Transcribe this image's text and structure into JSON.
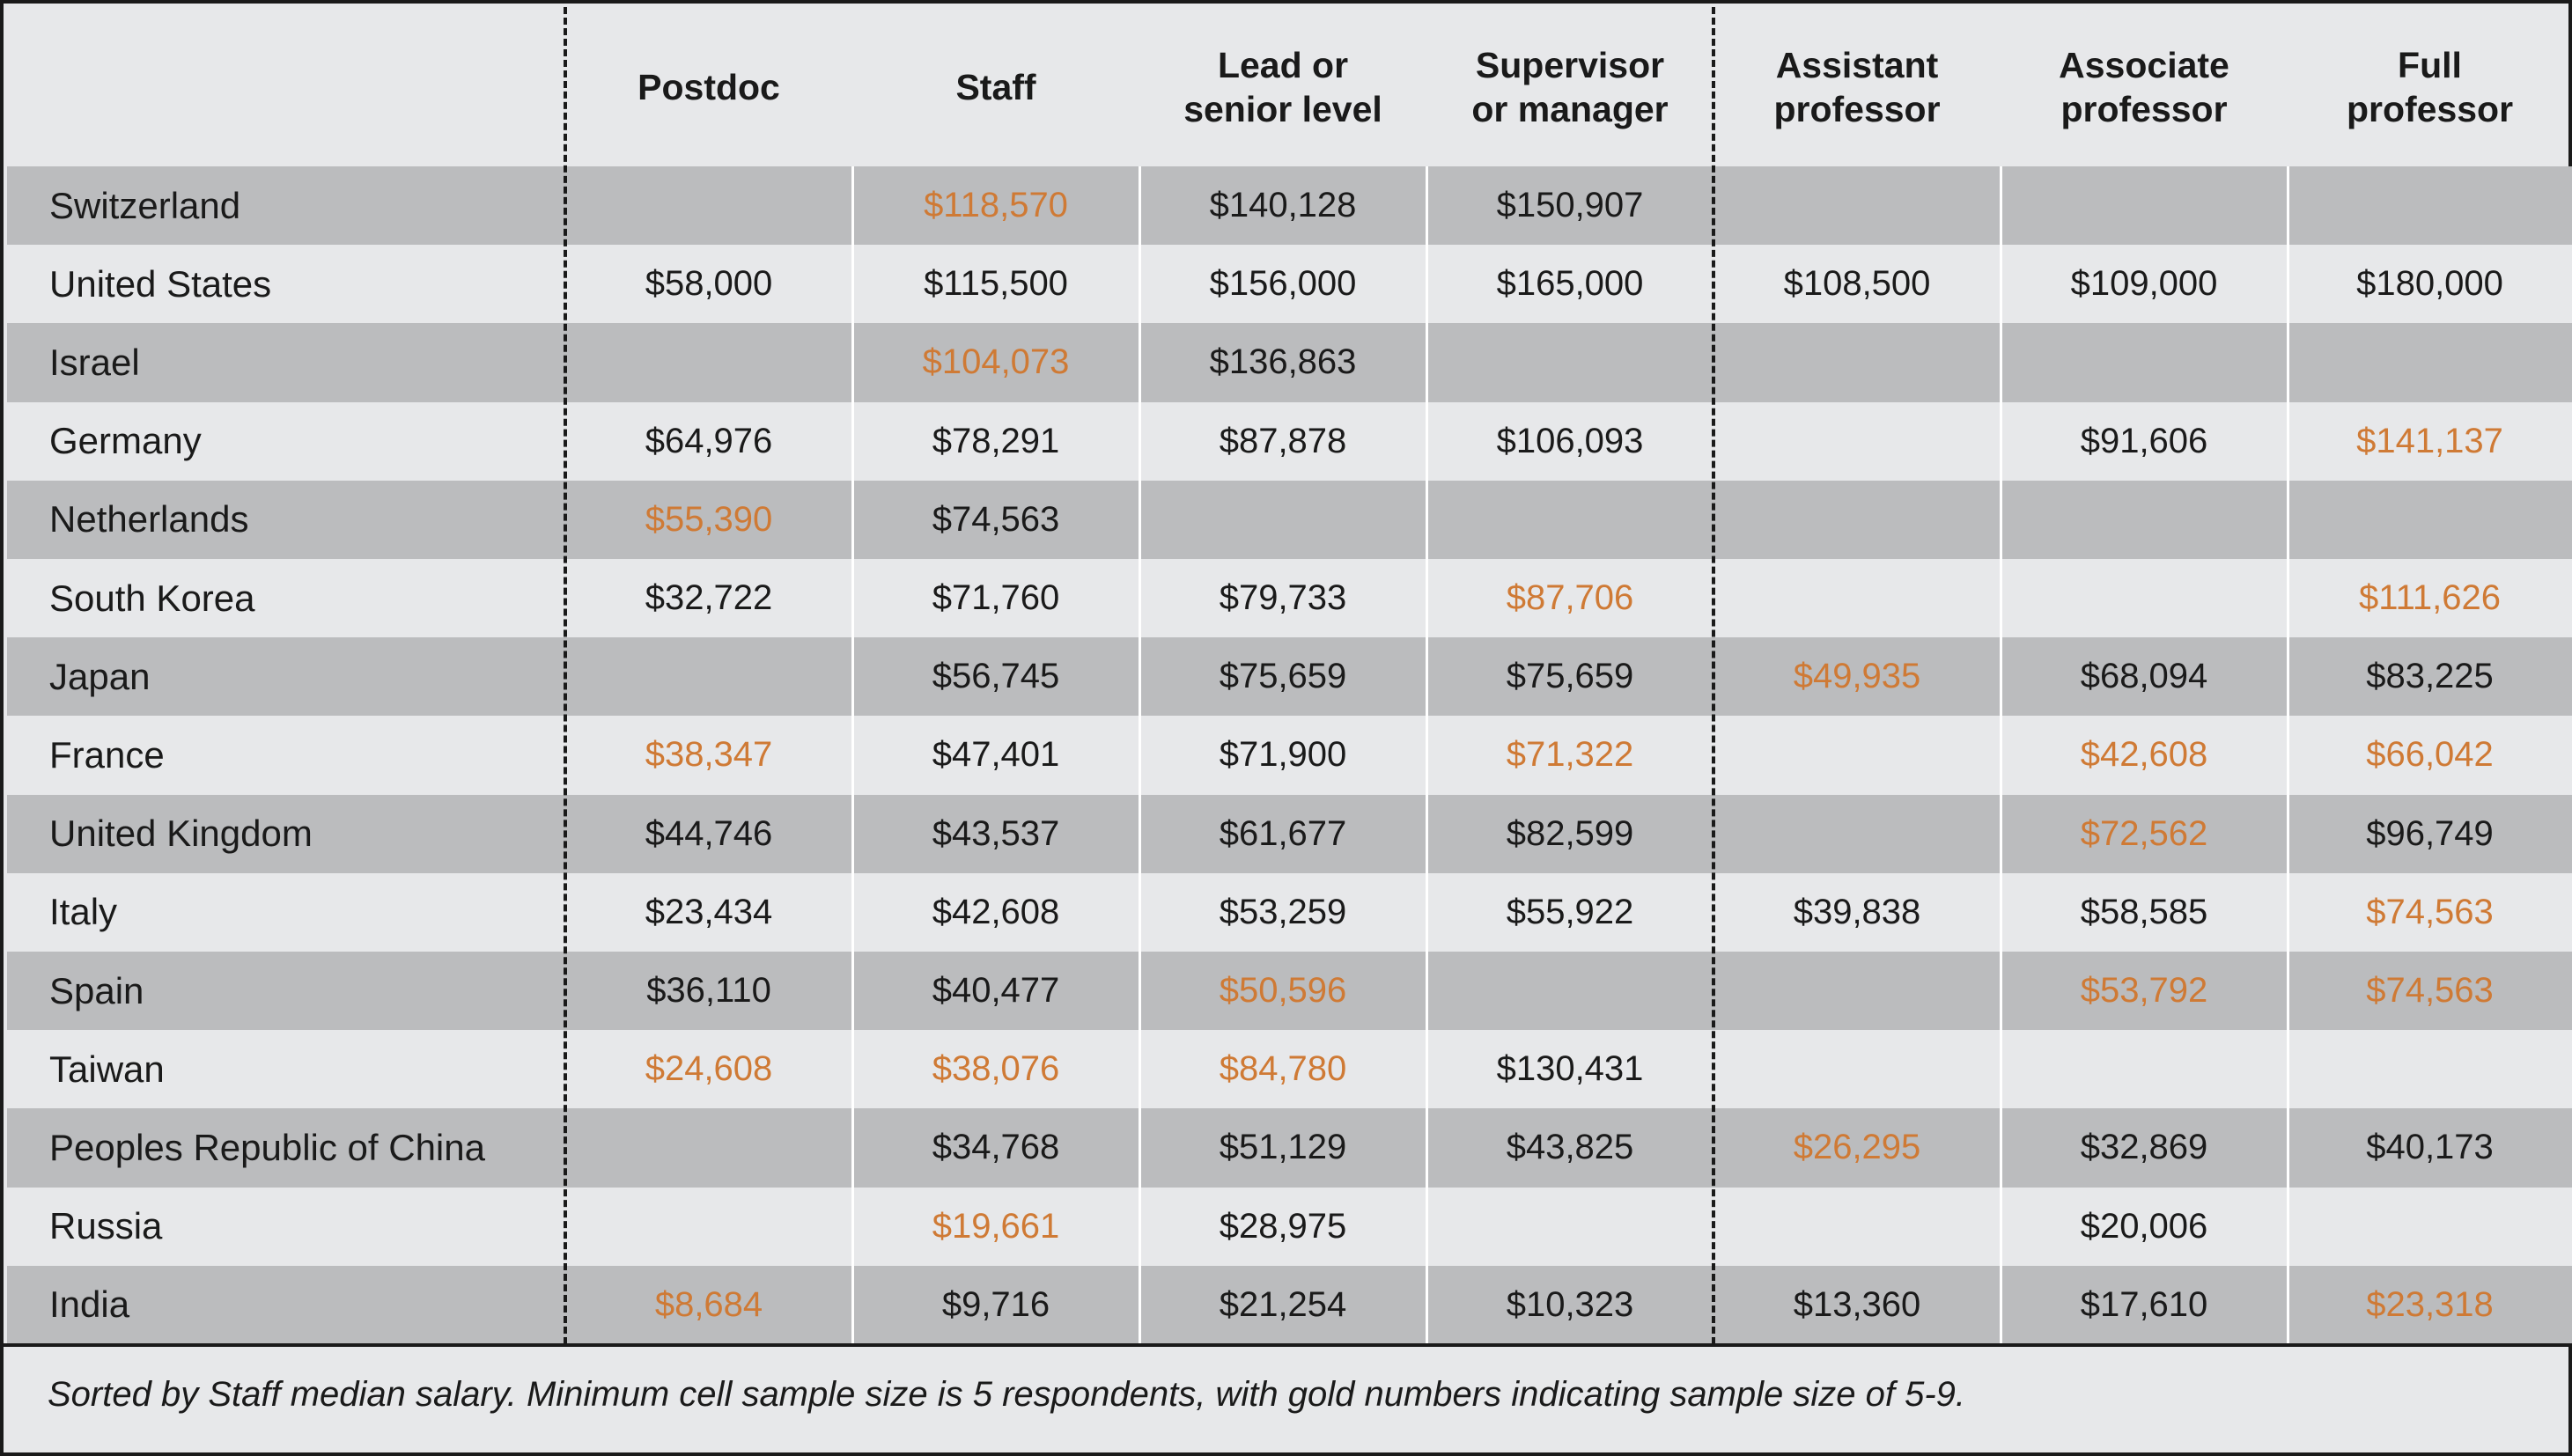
{
  "chart_data": {
    "type": "table",
    "columns": [
      "Postdoc",
      "Staff",
      "Lead or senior level",
      "Supervisor or manager",
      "Assistant professor",
      "Associate professor",
      "Full professor"
    ],
    "column_header_lines": [
      [
        "Postdoc"
      ],
      [
        "Staff"
      ],
      [
        "Lead or",
        "senior level"
      ],
      [
        "Supervisor",
        "or manager"
      ],
      [
        "Assistant",
        "professor"
      ],
      [
        "Associate",
        "professor"
      ],
      [
        "Full",
        "professor"
      ]
    ],
    "rows": [
      {
        "country": "Switzerland",
        "values": [
          null,
          "$118,570",
          "$140,128",
          "$150,907",
          null,
          null,
          null
        ],
        "gold": [
          false,
          true,
          false,
          false,
          false,
          false,
          false
        ]
      },
      {
        "country": "United States",
        "values": [
          "$58,000",
          "$115,500",
          "$156,000",
          "$165,000",
          "$108,500",
          "$109,000",
          "$180,000"
        ],
        "gold": [
          false,
          false,
          false,
          false,
          false,
          false,
          false
        ]
      },
      {
        "country": "Israel",
        "values": [
          null,
          "$104,073",
          "$136,863",
          null,
          null,
          null,
          null
        ],
        "gold": [
          false,
          true,
          false,
          false,
          false,
          false,
          false
        ]
      },
      {
        "country": "Germany",
        "values": [
          "$64,976",
          "$78,291",
          "$87,878",
          "$106,093",
          null,
          "$91,606",
          "$141,137"
        ],
        "gold": [
          false,
          false,
          false,
          false,
          false,
          false,
          true
        ]
      },
      {
        "country": "Netherlands",
        "values": [
          "$55,390",
          "$74,563",
          null,
          null,
          null,
          null,
          null
        ],
        "gold": [
          true,
          false,
          false,
          false,
          false,
          false,
          false
        ]
      },
      {
        "country": "South Korea",
        "values": [
          "$32,722",
          "$71,760",
          "$79,733",
          "$87,706",
          null,
          null,
          "$111,626"
        ],
        "gold": [
          false,
          false,
          false,
          true,
          false,
          false,
          true
        ]
      },
      {
        "country": "Japan",
        "values": [
          null,
          "$56,745",
          "$75,659",
          "$75,659",
          "$49,935",
          "$68,094",
          "$83,225"
        ],
        "gold": [
          false,
          false,
          false,
          false,
          true,
          false,
          false
        ]
      },
      {
        "country": "France",
        "values": [
          "$38,347",
          "$47,401",
          "$71,900",
          "$71,322",
          null,
          "$42,608",
          "$66,042"
        ],
        "gold": [
          true,
          false,
          false,
          true,
          false,
          true,
          true
        ]
      },
      {
        "country": "United Kingdom",
        "values": [
          "$44,746",
          "$43,537",
          "$61,677",
          "$82,599",
          null,
          "$72,562",
          "$96,749"
        ],
        "gold": [
          false,
          false,
          false,
          false,
          false,
          true,
          false
        ]
      },
      {
        "country": "Italy",
        "values": [
          "$23,434",
          "$42,608",
          "$53,259",
          "$55,922",
          "$39,838",
          "$58,585",
          "$74,563"
        ],
        "gold": [
          false,
          false,
          false,
          false,
          false,
          false,
          true
        ]
      },
      {
        "country": "Spain",
        "values": [
          "$36,110",
          "$40,477",
          "$50,596",
          null,
          null,
          "$53,792",
          "$74,563"
        ],
        "gold": [
          false,
          false,
          true,
          false,
          false,
          true,
          true
        ]
      },
      {
        "country": "Taiwan",
        "values": [
          "$24,608",
          "$38,076",
          "$84,780",
          "$130,431",
          null,
          null,
          null
        ],
        "gold": [
          true,
          true,
          true,
          false,
          false,
          false,
          false
        ]
      },
      {
        "country": "Peoples Republic of China",
        "values": [
          null,
          "$34,768",
          "$51,129",
          "$43,825",
          "$26,295",
          "$32,869",
          "$40,173"
        ],
        "gold": [
          false,
          false,
          false,
          false,
          true,
          false,
          false
        ]
      },
      {
        "country": "Russia",
        "values": [
          null,
          "$19,661",
          "$28,975",
          null,
          null,
          "$20,006",
          null
        ],
        "gold": [
          false,
          true,
          false,
          false,
          false,
          false,
          false
        ]
      },
      {
        "country": "India",
        "values": [
          "$8,684",
          "$9,716",
          "$21,254",
          "$10,323",
          "$13,360",
          "$17,610",
          "$23,318"
        ],
        "gold": [
          true,
          false,
          false,
          false,
          false,
          false,
          true
        ]
      }
    ],
    "footnote": "Sorted by Staff median salary. Minimum cell sample size is 5 respondents, with gold numbers indicating sample size of 5-9."
  },
  "colors": {
    "gold_text": "#cf7a35",
    "default_text": "#1a1a1a",
    "row_dark": "#bbbcbe",
    "row_light": "#e7e8ea"
  }
}
